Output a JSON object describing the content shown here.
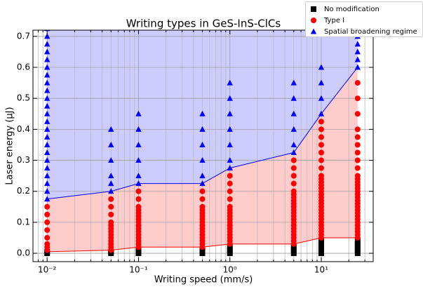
{
  "chart_data": {
    "type": "scatter",
    "title": "Writing types in GeS-InS-ClCs",
    "x_label": "Writing speed (mm/s)",
    "y_label": "Laser energy (μJ)",
    "x_log": true,
    "grid": true,
    "legend_position": "upper right",
    "xlim": [
      0.007,
      37
    ],
    "ylim": [
      -0.027,
      0.72
    ],
    "xticks": [
      {
        "value": 0.01,
        "label": "10⁻²"
      },
      {
        "value": 0.1,
        "label": "10⁻¹"
      },
      {
        "value": 1,
        "label": "10⁰"
      },
      {
        "value": 10,
        "label": "10¹"
      }
    ],
    "xminor_ticks": [
      0.008,
      0.009,
      0.02,
      0.03,
      0.04,
      0.05,
      0.06,
      0.07,
      0.08,
      0.09,
      0.2,
      0.3,
      0.4,
      0.5,
      0.6,
      0.7,
      0.8,
      0.9,
      2,
      3,
      4,
      5,
      6,
      7,
      8,
      9,
      20,
      30
    ],
    "yticks": [
      {
        "value": 0,
        "label": "0.0"
      },
      {
        "value": 0.1,
        "label": "0.1"
      },
      {
        "value": 0.2,
        "label": "0.2"
      },
      {
        "value": 0.3,
        "label": "0.3"
      },
      {
        "value": 0.4,
        "label": "0.4"
      },
      {
        "value": 0.5,
        "label": "0.5"
      },
      {
        "value": 0.6,
        "label": "0.6"
      },
      {
        "value": 0.7,
        "label": "0.7"
      }
    ],
    "boundary_x": [
      0.01,
      0.05,
      0.1,
      0.5,
      1,
      5,
      10,
      25
    ],
    "lower_boundary": {
      "color": "#ff0000",
      "fill": "#ffffff",
      "values": [
        0.005,
        0.01,
        0.02,
        0.02,
        0.03,
        0.03,
        0.05,
        0.05
      ]
    },
    "upper_boundary": {
      "color": "#0000ff",
      "fill": "#ffcccc",
      "values": [
        0.175,
        0.2,
        0.225,
        0.225,
        0.275,
        0.325,
        0.45,
        0.6
      ]
    },
    "top_fill": "#ccccff",
    "series": [
      {
        "name": "No modification",
        "color": "#000000",
        "marker": "square",
        "groups": [
          {
            "x": 0.01,
            "values": [
              0,
              0.005
            ]
          },
          {
            "x": 0.05,
            "values": [
              0,
              0.005
            ]
          },
          {
            "x": 0.1,
            "values": [
              0,
              0.01
            ]
          },
          {
            "x": 0.5,
            "values": [
              0,
              0.01
            ]
          },
          {
            "x": 1,
            "values": [
              0,
              0.01,
              0.02
            ]
          },
          {
            "x": 5,
            "values": [
              0,
              0.01,
              0.02
            ]
          },
          {
            "x": 10,
            "values": [
              0,
              0.01,
              0.02,
              0.03,
              0.04
            ]
          },
          {
            "x": 25,
            "values": [
              0,
              0.01,
              0.02,
              0.03,
              0.04
            ]
          }
        ]
      },
      {
        "name": "Type I",
        "color": "#ff0000",
        "marker": "circle",
        "groups": [
          {
            "x": 0.01,
            "values": [
              0.01,
              0.02,
              0.03,
              0.05,
              0.075,
              0.1,
              0.125,
              0.15
            ]
          },
          {
            "x": 0.05,
            "values": [
              0.01,
              0.02,
              0.03,
              0.04,
              0.05,
              0.06,
              0.07,
              0.08,
              0.09,
              0.1,
              0.125,
              0.15,
              0.175
            ]
          },
          {
            "x": 0.1,
            "values": [
              0.02,
              0.03,
              0.04,
              0.05,
              0.06,
              0.07,
              0.08,
              0.09,
              0.1,
              0.11,
              0.12,
              0.13,
              0.14,
              0.15,
              0.175,
              0.2
            ]
          },
          {
            "x": 0.5,
            "values": [
              0.02,
              0.03,
              0.04,
              0.05,
              0.06,
              0.07,
              0.08,
              0.09,
              0.1,
              0.11,
              0.12,
              0.13,
              0.14,
              0.15,
              0.175,
              0.2
            ]
          },
          {
            "x": 1,
            "values": [
              0.03,
              0.04,
              0.05,
              0.06,
              0.07,
              0.08,
              0.09,
              0.1,
              0.11,
              0.12,
              0.13,
              0.14,
              0.15,
              0.175,
              0.2,
              0.225,
              0.25
            ]
          },
          {
            "x": 5,
            "values": [
              0.03,
              0.04,
              0.05,
              0.06,
              0.07,
              0.08,
              0.09,
              0.1,
              0.11,
              0.12,
              0.13,
              0.14,
              0.15,
              0.16,
              0.17,
              0.18,
              0.19,
              0.2,
              0.225,
              0.25,
              0.275,
              0.3
            ]
          },
          {
            "x": 10,
            "values": [
              0.05,
              0.06,
              0.07,
              0.08,
              0.09,
              0.1,
              0.11,
              0.12,
              0.13,
              0.14,
              0.15,
              0.16,
              0.17,
              0.18,
              0.19,
              0.2,
              0.21,
              0.22,
              0.23,
              0.24,
              0.25,
              0.275,
              0.3,
              0.325,
              0.35,
              0.375,
              0.4,
              0.425
            ]
          },
          {
            "x": 25,
            "values": [
              0.05,
              0.06,
              0.07,
              0.08,
              0.09,
              0.1,
              0.11,
              0.12,
              0.13,
              0.14,
              0.15,
              0.16,
              0.17,
              0.18,
              0.19,
              0.2,
              0.21,
              0.22,
              0.23,
              0.24,
              0.25,
              0.275,
              0.3,
              0.325,
              0.35,
              0.375,
              0.4,
              0.45,
              0.5,
              0.55
            ]
          }
        ]
      },
      {
        "name": "Spatial broadening regime",
        "color": "#0000ff",
        "marker": "triangle",
        "groups": [
          {
            "x": 0.01,
            "values": [
              0.175,
              0.2,
              0.225,
              0.25,
              0.275,
              0.3,
              0.325,
              0.35,
              0.375,
              0.4,
              0.425,
              0.45,
              0.475,
              0.5,
              0.525,
              0.55,
              0.575,
              0.6,
              0.625,
              0.65,
              0.675,
              0.7,
              0.725
            ]
          },
          {
            "x": 0.05,
            "values": [
              0.2,
              0.225,
              0.25,
              0.3,
              0.35,
              0.4
            ]
          },
          {
            "x": 0.1,
            "values": [
              0.225,
              0.25,
              0.3,
              0.35,
              0.4,
              0.45
            ]
          },
          {
            "x": 0.5,
            "values": [
              0.225,
              0.25,
              0.3,
              0.35,
              0.4,
              0.45
            ]
          },
          {
            "x": 1,
            "values": [
              0.275,
              0.3,
              0.35,
              0.4,
              0.45,
              0.5,
              0.55
            ]
          },
          {
            "x": 5,
            "values": [
              0.325,
              0.35,
              0.4,
              0.45,
              0.5,
              0.55
            ]
          },
          {
            "x": 10,
            "values": [
              0.45,
              0.5,
              0.55,
              0.6
            ]
          },
          {
            "x": 25,
            "values": [
              0.6,
              0.625,
              0.65,
              0.675,
              0.7
            ]
          }
        ]
      }
    ]
  }
}
